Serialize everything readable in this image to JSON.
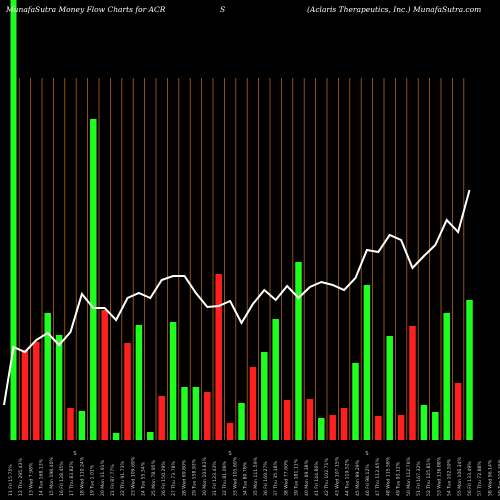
{
  "header": {
    "left": "MunafaSutra  Money Flow  Charts for ACR",
    "middle": "S",
    "right": "(Aclaris Therapeutics, Inc.) MunafaSutra.com"
  },
  "colors": {
    "background": "#000000",
    "grid": "#b8651b",
    "up": "#1fff1f",
    "down": "#ff1f1f",
    "line": "#ffffff",
    "text": "#ffffff"
  },
  "chart_data": {
    "type": "bar",
    "title": "MunafaSutra  Money Flow  Charts for ACR",
    "grid": true,
    "categories": [
      "11 Fri 15.75%",
      "12 Thu 295.43%",
      "13 Wed 7.98%",
      "14 Tue 168.13%",
      "15 Mon 198.40%",
      "16 Fri 128.45%",
      "17 Thu 83.82%",
      "18 Wed 110.24%",
      "19 Tue 1.01%",
      "20 Mon 11.91%",
      "21 Fri 87.77%",
      "22 Thu 91.73%",
      "23 Wed 109.69%",
      "24 Tue 55.34%",
      "25 Mon 78.95%",
      "26 Fri 150.29%",
      "27 Thu 73.78%",
      "28 Wed 69.80%",
      "29 Tue 158.93%",
      "30 Mon 103.81%",
      "31 Fri 123.43%",
      "32 Thu 81.09%",
      "33 Wed 101.60%",
      "34 Tue 80.78%",
      "35 Mon 111.59%",
      "36 Fri 169.27%",
      "37 Thu 35.18%",
      "38 Wed 77.60%",
      "39 Tue 181.11%",
      "40 Mon 69.38%",
      "41 Fri 144.86%",
      "42 Thu 102.71%",
      "43 Wed 107.15%",
      "44 Tue 119.52%",
      "45 Mon 99.29%",
      "46 Fri 98.12%",
      "47 Thu 112.65%",
      "48 Wed 115.58%",
      "49 Tue 93.12%",
      "50 Mon 112.76%",
      "51 Fri 167.32%",
      "52 Thu 125.81%",
      "53 Wed 136.88%",
      "54 Tue 102.59%",
      "55 Mon 106.34%",
      "56 Fri 133.49%",
      "57 Thu 72.88%",
      "58 Wed 96.14%",
      "59 Tue 110.35%",
      "60 Mon 110.69%"
    ],
    "markers": [
      "S",
      "S",
      "S"
    ],
    "bars": [
      {
        "value": 440,
        "dir": "up"
      },
      {
        "value": 90,
        "dir": "down"
      },
      {
        "value": 98,
        "dir": "down"
      },
      {
        "value": 127,
        "dir": "up"
      },
      {
        "value": 105,
        "dir": "up"
      },
      {
        "value": 32,
        "dir": "down"
      },
      {
        "value": 29,
        "dir": "up"
      },
      {
        "value": 321,
        "dir": "up"
      },
      {
        "value": 130,
        "dir": "down"
      },
      {
        "value": 7,
        "dir": "up"
      },
      {
        "value": 97,
        "dir": "down"
      },
      {
        "value": 115,
        "dir": "up"
      },
      {
        "value": 8,
        "dir": "up"
      },
      {
        "value": 44,
        "dir": "down"
      },
      {
        "value": 118,
        "dir": "up"
      },
      {
        "value": 53,
        "dir": "up"
      },
      {
        "value": 53,
        "dir": "up"
      },
      {
        "value": 48,
        "dir": "down"
      },
      {
        "value": 166,
        "dir": "down"
      },
      {
        "value": 17,
        "dir": "down"
      },
      {
        "value": 37,
        "dir": "up"
      },
      {
        "value": 73,
        "dir": "down"
      },
      {
        "value": 88,
        "dir": "up"
      },
      {
        "value": 121,
        "dir": "up"
      },
      {
        "value": 40,
        "dir": "down"
      },
      {
        "value": 178,
        "dir": "up"
      },
      {
        "value": 41,
        "dir": "down"
      },
      {
        "value": 22,
        "dir": "up"
      },
      {
        "value": 25,
        "dir": "down"
      },
      {
        "value": 32,
        "dir": "down"
      },
      {
        "value": 77,
        "dir": "up"
      },
      {
        "value": 155,
        "dir": "up"
      },
      {
        "value": 24,
        "dir": "down"
      },
      {
        "value": 104,
        "dir": "up"
      },
      {
        "value": 25,
        "dir": "down"
      },
      {
        "value": 114,
        "dir": "down"
      },
      {
        "value": 35,
        "dir": "up"
      },
      {
        "value": 28,
        "dir": "up"
      },
      {
        "value": 127,
        "dir": "up"
      },
      {
        "value": 57,
        "dir": "down"
      },
      {
        "value": 140,
        "dir": "up"
      }
    ],
    "line": [
      {
        "x": 0,
        "y": 35
      },
      {
        "x": 1,
        "y": 93
      },
      {
        "x": 2,
        "y": 88
      },
      {
        "x": 3,
        "y": 100
      },
      {
        "x": 4,
        "y": 107
      },
      {
        "x": 5,
        "y": 95
      },
      {
        "x": 6,
        "y": 108
      },
      {
        "x": 7,
        "y": 146
      },
      {
        "x": 8,
        "y": 132
      },
      {
        "x": 9,
        "y": 132
      },
      {
        "x": 10,
        "y": 120
      },
      {
        "x": 11,
        "y": 142
      },
      {
        "x": 12,
        "y": 147
      },
      {
        "x": 13,
        "y": 142
      },
      {
        "x": 14,
        "y": 160
      },
      {
        "x": 15,
        "y": 164
      },
      {
        "x": 16,
        "y": 164
      },
      {
        "x": 17,
        "y": 147
      },
      {
        "x": 18,
        "y": 133
      },
      {
        "x": 19,
        "y": 134
      },
      {
        "x": 20,
        "y": 139
      },
      {
        "x": 21,
        "y": 117
      },
      {
        "x": 22,
        "y": 136
      },
      {
        "x": 23,
        "y": 150
      },
      {
        "x": 24,
        "y": 140
      },
      {
        "x": 25,
        "y": 154
      },
      {
        "x": 26,
        "y": 142
      },
      {
        "x": 27,
        "y": 153
      },
      {
        "x": 28,
        "y": 158
      },
      {
        "x": 29,
        "y": 155
      },
      {
        "x": 30,
        "y": 150
      },
      {
        "x": 31,
        "y": 162
      },
      {
        "x": 32,
        "y": 190
      },
      {
        "x": 33,
        "y": 188
      },
      {
        "x": 34,
        "y": 205
      },
      {
        "x": 35,
        "y": 200
      },
      {
        "x": 36,
        "y": 172
      },
      {
        "x": 37,
        "y": 184
      },
      {
        "x": 38,
        "y": 195
      },
      {
        "x": 39,
        "y": 220
      },
      {
        "x": 40,
        "y": 208
      },
      {
        "x": 41,
        "y": 250
      }
    ]
  }
}
